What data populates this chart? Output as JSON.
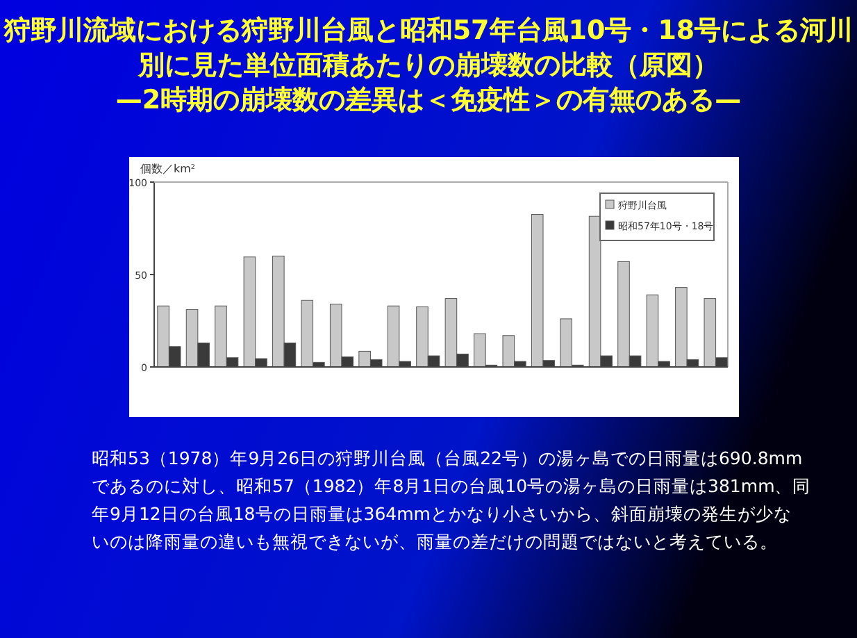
{
  "chart_data": {
    "type": "bar",
    "title": "狩野川流域における狩野川台風と昭和57年台風10号・18号による河川別に見た単位面積あたりの崩壊数の比較（原図）",
    "subtitle": "—2時期の崩壊数の差異は＜免疫性＞の有無のある—",
    "ylabel": "個数／km²",
    "categories": [
      null,
      null,
      null,
      null,
      null,
      null,
      null,
      null,
      null,
      null,
      null,
      null,
      null,
      null,
      null,
      null,
      null,
      null,
      null,
      null
    ],
    "series": [
      {
        "name": "狩野川台風",
        "color": "#c8c8c8",
        "values": [
          33,
          31,
          33,
          59.5,
          60,
          36,
          34,
          8.5,
          33,
          32.5,
          37,
          18,
          17,
          82.5,
          26,
          81.5,
          57,
          39,
          43,
          37
        ]
      },
      {
        "name": "昭和57年10号・18号",
        "color": "#3a3a3a",
        "values": [
          11,
          13,
          5,
          4.5,
          13,
          2.5,
          5.5,
          4,
          3,
          6,
          7,
          1,
          3,
          3.5,
          1,
          6,
          6,
          3,
          4,
          5
        ]
      }
    ],
    "ylim": [
      0,
      100
    ],
    "yticks": [
      0,
      50,
      100
    ],
    "grid": false,
    "legend": "top right",
    "annotations": [
      "昭和53（1978）年9月26日の狩野川台風（台風22号）の湯ヶ島での日雨量は690.8mmであるのに対し、昭和57（1982）年8月1日の台風10号の湯ヶ島の日雨量は381mm、同年9月12日の台風18号の日雨量は364mmとかなり小さいから、斜面崩壊の発生が少ないのは降雨量の違いも無視できないが、雨量の差だけの問題ではないと考えている。"
    ]
  }
}
